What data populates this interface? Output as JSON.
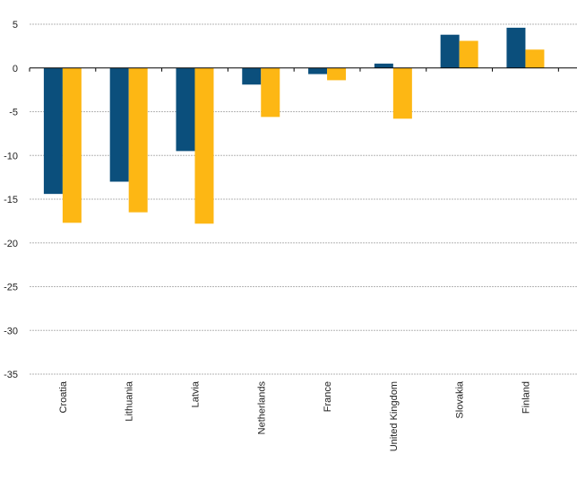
{
  "chart_data": {
    "type": "bar",
    "categories": [
      "Croatia",
      "Lithuania",
      "Latvia",
      "Netherlands",
      "France",
      "United Kingdom",
      "Slovakia",
      "Finland"
    ],
    "series": [
      {
        "color": "#0b4f7c",
        "values": [
          -14.4,
          -13.0,
          -9.5,
          -1.9,
          -0.7,
          0.5,
          3.8,
          4.6
        ]
      },
      {
        "color": "#fdb714",
        "values": [
          -17.7,
          -16.5,
          -17.8,
          -5.6,
          -1.4,
          -5.8,
          3.1,
          2.1
        ]
      }
    ],
    "ylim": [
      -35,
      5
    ],
    "yticks": [
      5,
      0,
      -5,
      -10,
      -15,
      -20,
      -25,
      -30,
      -35
    ],
    "grid": true,
    "legend": "none",
    "title": "",
    "xlabel": "",
    "ylabel": ""
  }
}
